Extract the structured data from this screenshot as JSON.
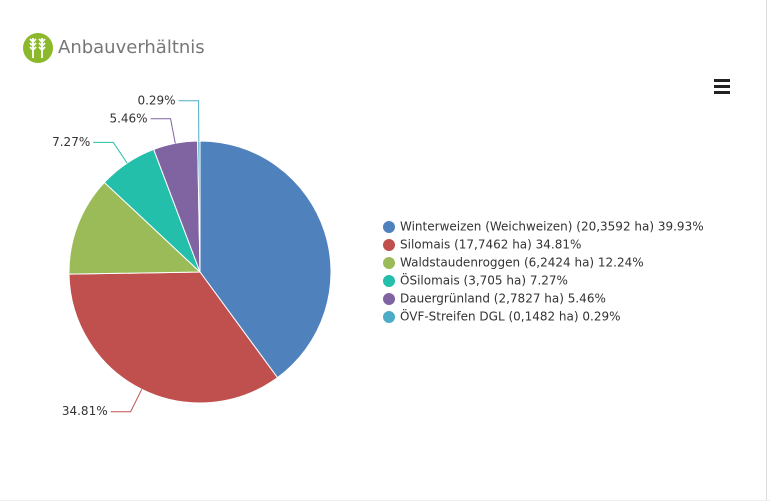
{
  "chart_data": {
    "type": "pie",
    "title": "Anbauverhältnis",
    "categories": [
      "Winterweizen (Weichweizen) (20,3592 ha) 39.93%",
      "Silomais  (17,7462 ha) 34.81%",
      "Waldstaudenroggen (6,2424 ha) 12.24%",
      "ÖSilomais  (3,705 ha) 7.27%",
      "Dauergrünland (2,7827 ha) 5.46%",
      "ÖVF-Streifen DGL (0,1482 ha) 0.29%"
    ],
    "values": [
      39.93,
      34.81,
      12.24,
      7.27,
      5.46,
      0.29
    ],
    "value_labels": [
      null,
      "34.81%",
      null,
      "7.27%",
      "5.46%",
      "0.29%"
    ],
    "colors": [
      "#4f81bd",
      "#c0504d",
      "#9bbb59",
      "#23bfaa",
      "#8064a2",
      "#4bacc6"
    ],
    "legend": "right"
  }
}
